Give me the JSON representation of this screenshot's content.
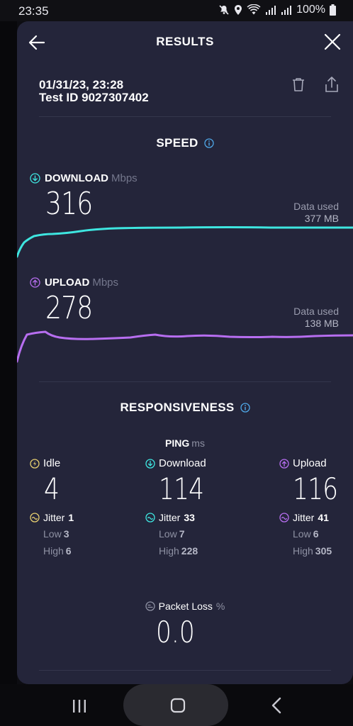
{
  "status_bar": {
    "time": "23:35",
    "battery": "100%"
  },
  "header": {
    "title": "RESULTS"
  },
  "test": {
    "date": "01/31/23, 23:28",
    "id_label": "Test ID 9027307402"
  },
  "speed": {
    "title": "SPEED",
    "download": {
      "label": "DOWNLOAD",
      "unit": "Mbps",
      "value": "316",
      "data_used_label": "Data used",
      "data_used_value": "377 MB",
      "color": "#3ee6e0"
    },
    "upload": {
      "label": "UPLOAD",
      "unit": "Mbps",
      "value": "278",
      "data_used_label": "Data used",
      "data_used_value": "138 MB",
      "color": "#b76ef0"
    }
  },
  "responsiveness": {
    "title": "RESPONSIVENESS",
    "ping_label": "PING",
    "ping_unit": "ms",
    "idle": {
      "label": "Idle",
      "value": "4",
      "jitter_label": "Jitter",
      "jitter_value": "1",
      "low_label": "Low",
      "low_value": "3",
      "high_label": "High",
      "high_value": "6",
      "color": "#e8d070"
    },
    "download": {
      "label": "Download",
      "value": "114",
      "jitter_label": "Jitter",
      "jitter_value": "33",
      "low_label": "Low",
      "low_value": "7",
      "high_label": "High",
      "high_value": "228",
      "color": "#3ee6e0"
    },
    "upload": {
      "label": "Upload",
      "value": "116",
      "jitter_label": "Jitter",
      "jitter_value": "41",
      "low_label": "Low",
      "low_value": "6",
      "high_label": "High",
      "high_value": "305",
      "color": "#b76ef0"
    }
  },
  "packet_loss": {
    "label": "Packet Loss",
    "unit": "%",
    "value": "0.0"
  },
  "accent_color": "#4fa8e8"
}
